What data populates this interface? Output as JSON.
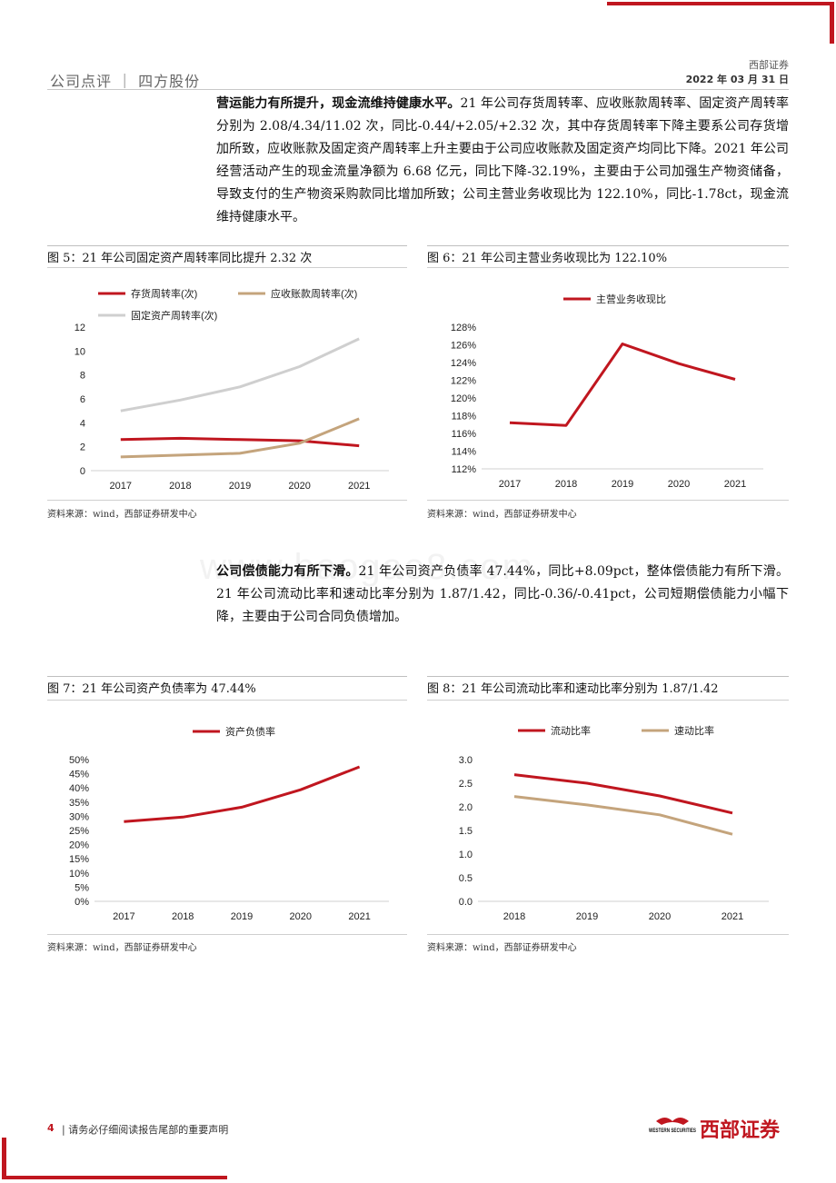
{
  "header": {
    "section": "公司点评 ｜ 四方股份",
    "firm": "西部证券",
    "date": "2022 年 03 月 31 日"
  },
  "paragraph1": {
    "bold": "营运能力有所提升，现金流维持健康水平。",
    "text": "21 年公司存货周转率、应收账款周转率、固定资产周转率分别为 2.08/4.34/11.02 次，同比-0.44/+2.05/+2.32 次，其中存货周转率下降主要系公司存货增加所致，应收账款及固定资产周转率上升主要由于公司应收账款及固定资产均同比下降。2021 年公司经营活动产生的现金流量净额为 6.68 亿元，同比下降-32.19%，主要由于公司加强生产物资储备，导致支付的生产物资采购款同比增加所致；公司主营业务收现比为 122.10%，同比-1.78ct，现金流维持健康水平。"
  },
  "paragraph2": {
    "bold": "公司偿债能力有所下滑。",
    "text": "21 年公司资产负债率 47.44%，同比+8.09pct，整体偿债能力有所下滑。21 年公司流动比率和速动比率分别为 1.87/1.42，同比-0.36/-0.41pct，公司短期偿债能力小幅下降，主要由于公司合同负债增加。"
  },
  "watermark": "www.baogao8.com",
  "figures": {
    "fig5": {
      "title": "图 5：21 年公司固定资产周转率同比提升 2.32 次",
      "source": "资料来源：wind，西部证券研发中心"
    },
    "fig6": {
      "title": "图 6：21 年公司主营业务收现比为 122.10%",
      "source": "资料来源：wind，西部证券研发中心"
    },
    "fig7": {
      "title": "图 7：21 年公司资产负债率为 47.44%",
      "source": "资料来源：wind，西部证券研发中心"
    },
    "fig8": {
      "title": "图 8：21 年公司流动比率和速动比率分别为 1.87/1.42",
      "source": "资料来源：wind，西部证券研发中心"
    }
  },
  "chart_data": [
    {
      "type": "line",
      "x": [
        "2017",
        "2018",
        "2019",
        "2020",
        "2021"
      ],
      "series": [
        {
          "name": "存货周转率(次)",
          "color": "#c0161f",
          "values": [
            2.6,
            2.7,
            2.6,
            2.5,
            2.08
          ]
        },
        {
          "name": "应收账款周转率(次)",
          "color": "#c4a47c",
          "values": [
            1.15,
            1.3,
            1.45,
            2.29,
            4.34
          ]
        },
        {
          "name": "固定资产周转率(次)",
          "color": "#cfcfcf",
          "values": [
            5.0,
            5.9,
            7.0,
            8.7,
            11.02
          ]
        }
      ],
      "ylim": [
        0,
        12
      ],
      "yticks": [
        "0",
        "2",
        "4",
        "6",
        "8",
        "10",
        "12"
      ],
      "legend": "top",
      "grid": false
    },
    {
      "type": "line",
      "x": [
        "2017",
        "2018",
        "2019",
        "2020",
        "2021"
      ],
      "series": [
        {
          "name": "主营业务收现比",
          "color": "#c0161f",
          "values": [
            117.2,
            116.9,
            126.1,
            123.88,
            122.1
          ]
        }
      ],
      "ylim": [
        112,
        128
      ],
      "yticks": [
        "112%",
        "114%",
        "116%",
        "118%",
        "120%",
        "122%",
        "124%",
        "126%",
        "128%"
      ],
      "legend": "top",
      "grid": false
    },
    {
      "type": "line",
      "x": [
        "2017",
        "2018",
        "2019",
        "2020",
        "2021"
      ],
      "series": [
        {
          "name": "资产负债率",
          "color": "#c0161f",
          "values": [
            28.1,
            29.7,
            33.2,
            39.35,
            47.44
          ]
        }
      ],
      "ylim": [
        0,
        50
      ],
      "yticks": [
        "0%",
        "5%",
        "10%",
        "15%",
        "20%",
        "25%",
        "30%",
        "35%",
        "40%",
        "45%",
        "50%"
      ],
      "legend": "top",
      "grid": false
    },
    {
      "type": "line",
      "x": [
        "2018",
        "2019",
        "2020",
        "2021"
      ],
      "series": [
        {
          "name": "流动比率",
          "color": "#c0161f",
          "values": [
            2.68,
            2.5,
            2.23,
            1.87
          ]
        },
        {
          "name": "速动比率",
          "color": "#c4a47c",
          "values": [
            2.22,
            2.04,
            1.83,
            1.42
          ]
        }
      ],
      "ylim": [
        0,
        3
      ],
      "yticks": [
        "0.0",
        "0.5",
        "1.0",
        "1.5",
        "2.0",
        "2.5",
        "3.0"
      ],
      "legend": "top",
      "grid": false
    }
  ],
  "footer": {
    "page": "4",
    "text": "| 请务必仔细阅读报告尾部的重要声明",
    "logo_en": "WESTERN SECURITIES",
    "logo_cn": "西部证券"
  }
}
